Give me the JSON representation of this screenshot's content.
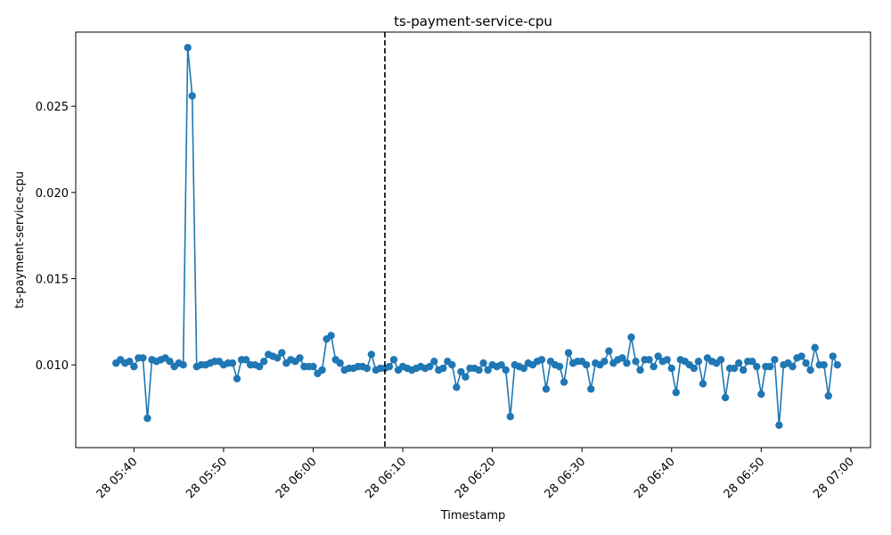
{
  "chart_data": {
    "type": "line",
    "title": "ts-payment-service-cpu",
    "xlabel": "Timestamp",
    "ylabel": "ts-payment-service-cpu",
    "x_start": "28 05:38",
    "x_step_minutes": 0.5,
    "xlim": [
      "28 05:33.5",
      "28 07:02.2"
    ],
    "ylim": [
      0.0052,
      0.0293
    ],
    "x_ticks": [
      "28 05:40",
      "28 05:50",
      "28 06:00",
      "28 06:10",
      "28 06:20",
      "28 06:30",
      "28 06:40",
      "28 06:50",
      "28 07:00"
    ],
    "y_ticks": [
      "0.010",
      "0.015",
      "0.020",
      "0.025"
    ],
    "y_tick_values": [
      0.01,
      0.015,
      0.02,
      0.025
    ],
    "marker_line_x": "28 06:08",
    "series": [
      {
        "color": "#1f77b4",
        "values": [
          0.0101,
          0.0103,
          0.0101,
          0.0102,
          0.0099,
          0.0104,
          0.0104,
          0.0069,
          0.0103,
          0.0102,
          0.0103,
          0.0104,
          0.0102,
          0.0099,
          0.0101,
          0.01,
          0.0284,
          0.0256,
          0.0099,
          0.01,
          0.01,
          0.0101,
          0.0102,
          0.0102,
          0.01,
          0.0101,
          0.0101,
          0.0092,
          0.0103,
          0.0103,
          0.01,
          0.01,
          0.0099,
          0.0102,
          0.0106,
          0.0105,
          0.0104,
          0.0107,
          0.0101,
          0.0103,
          0.0102,
          0.0104,
          0.0099,
          0.0099,
          0.0099,
          0.0095,
          0.0097,
          0.0115,
          0.0117,
          0.0103,
          0.0101,
          0.0097,
          0.0098,
          0.0098,
          0.0099,
          0.0099,
          0.0098,
          0.0106,
          0.0097,
          0.0098,
          0.0098,
          0.0099,
          0.0103,
          0.0097,
          0.0099,
          0.0098,
          0.0097,
          0.0098,
          0.0099,
          0.0098,
          0.0099,
          0.0102,
          0.0097,
          0.0098,
          0.0102,
          0.01,
          0.0087,
          0.0096,
          0.0093,
          0.0098,
          0.0098,
          0.0097,
          0.0101,
          0.0097,
          0.01,
          0.0099,
          0.01,
          0.0097,
          0.007,
          0.01,
          0.0099,
          0.0098,
          0.0101,
          0.01,
          0.0102,
          0.0103,
          0.0086,
          0.0102,
          0.01,
          0.0099,
          0.009,
          0.0107,
          0.0101,
          0.0102,
          0.0102,
          0.01,
          0.0086,
          0.0101,
          0.01,
          0.0102,
          0.0108,
          0.0101,
          0.0103,
          0.0104,
          0.0101,
          0.0116,
          0.0102,
          0.0097,
          0.0103,
          0.0103,
          0.0099,
          0.0105,
          0.0102,
          0.0103,
          0.0098,
          0.0084,
          0.0103,
          0.0102,
          0.01,
          0.0098,
          0.0102,
          0.0089,
          0.0104,
          0.0102,
          0.0101,
          0.0103,
          0.0081,
          0.0098,
          0.0098,
          0.0101,
          0.0097,
          0.0102,
          0.0102,
          0.0099,
          0.0083,
          0.0099,
          0.0099,
          0.0103,
          0.0065,
          0.01,
          0.0101,
          0.0099,
          0.0104,
          0.0105,
          0.0101,
          0.0097,
          0.011,
          0.01,
          0.01,
          0.0082,
          0.0105,
          0.01
        ]
      }
    ]
  }
}
